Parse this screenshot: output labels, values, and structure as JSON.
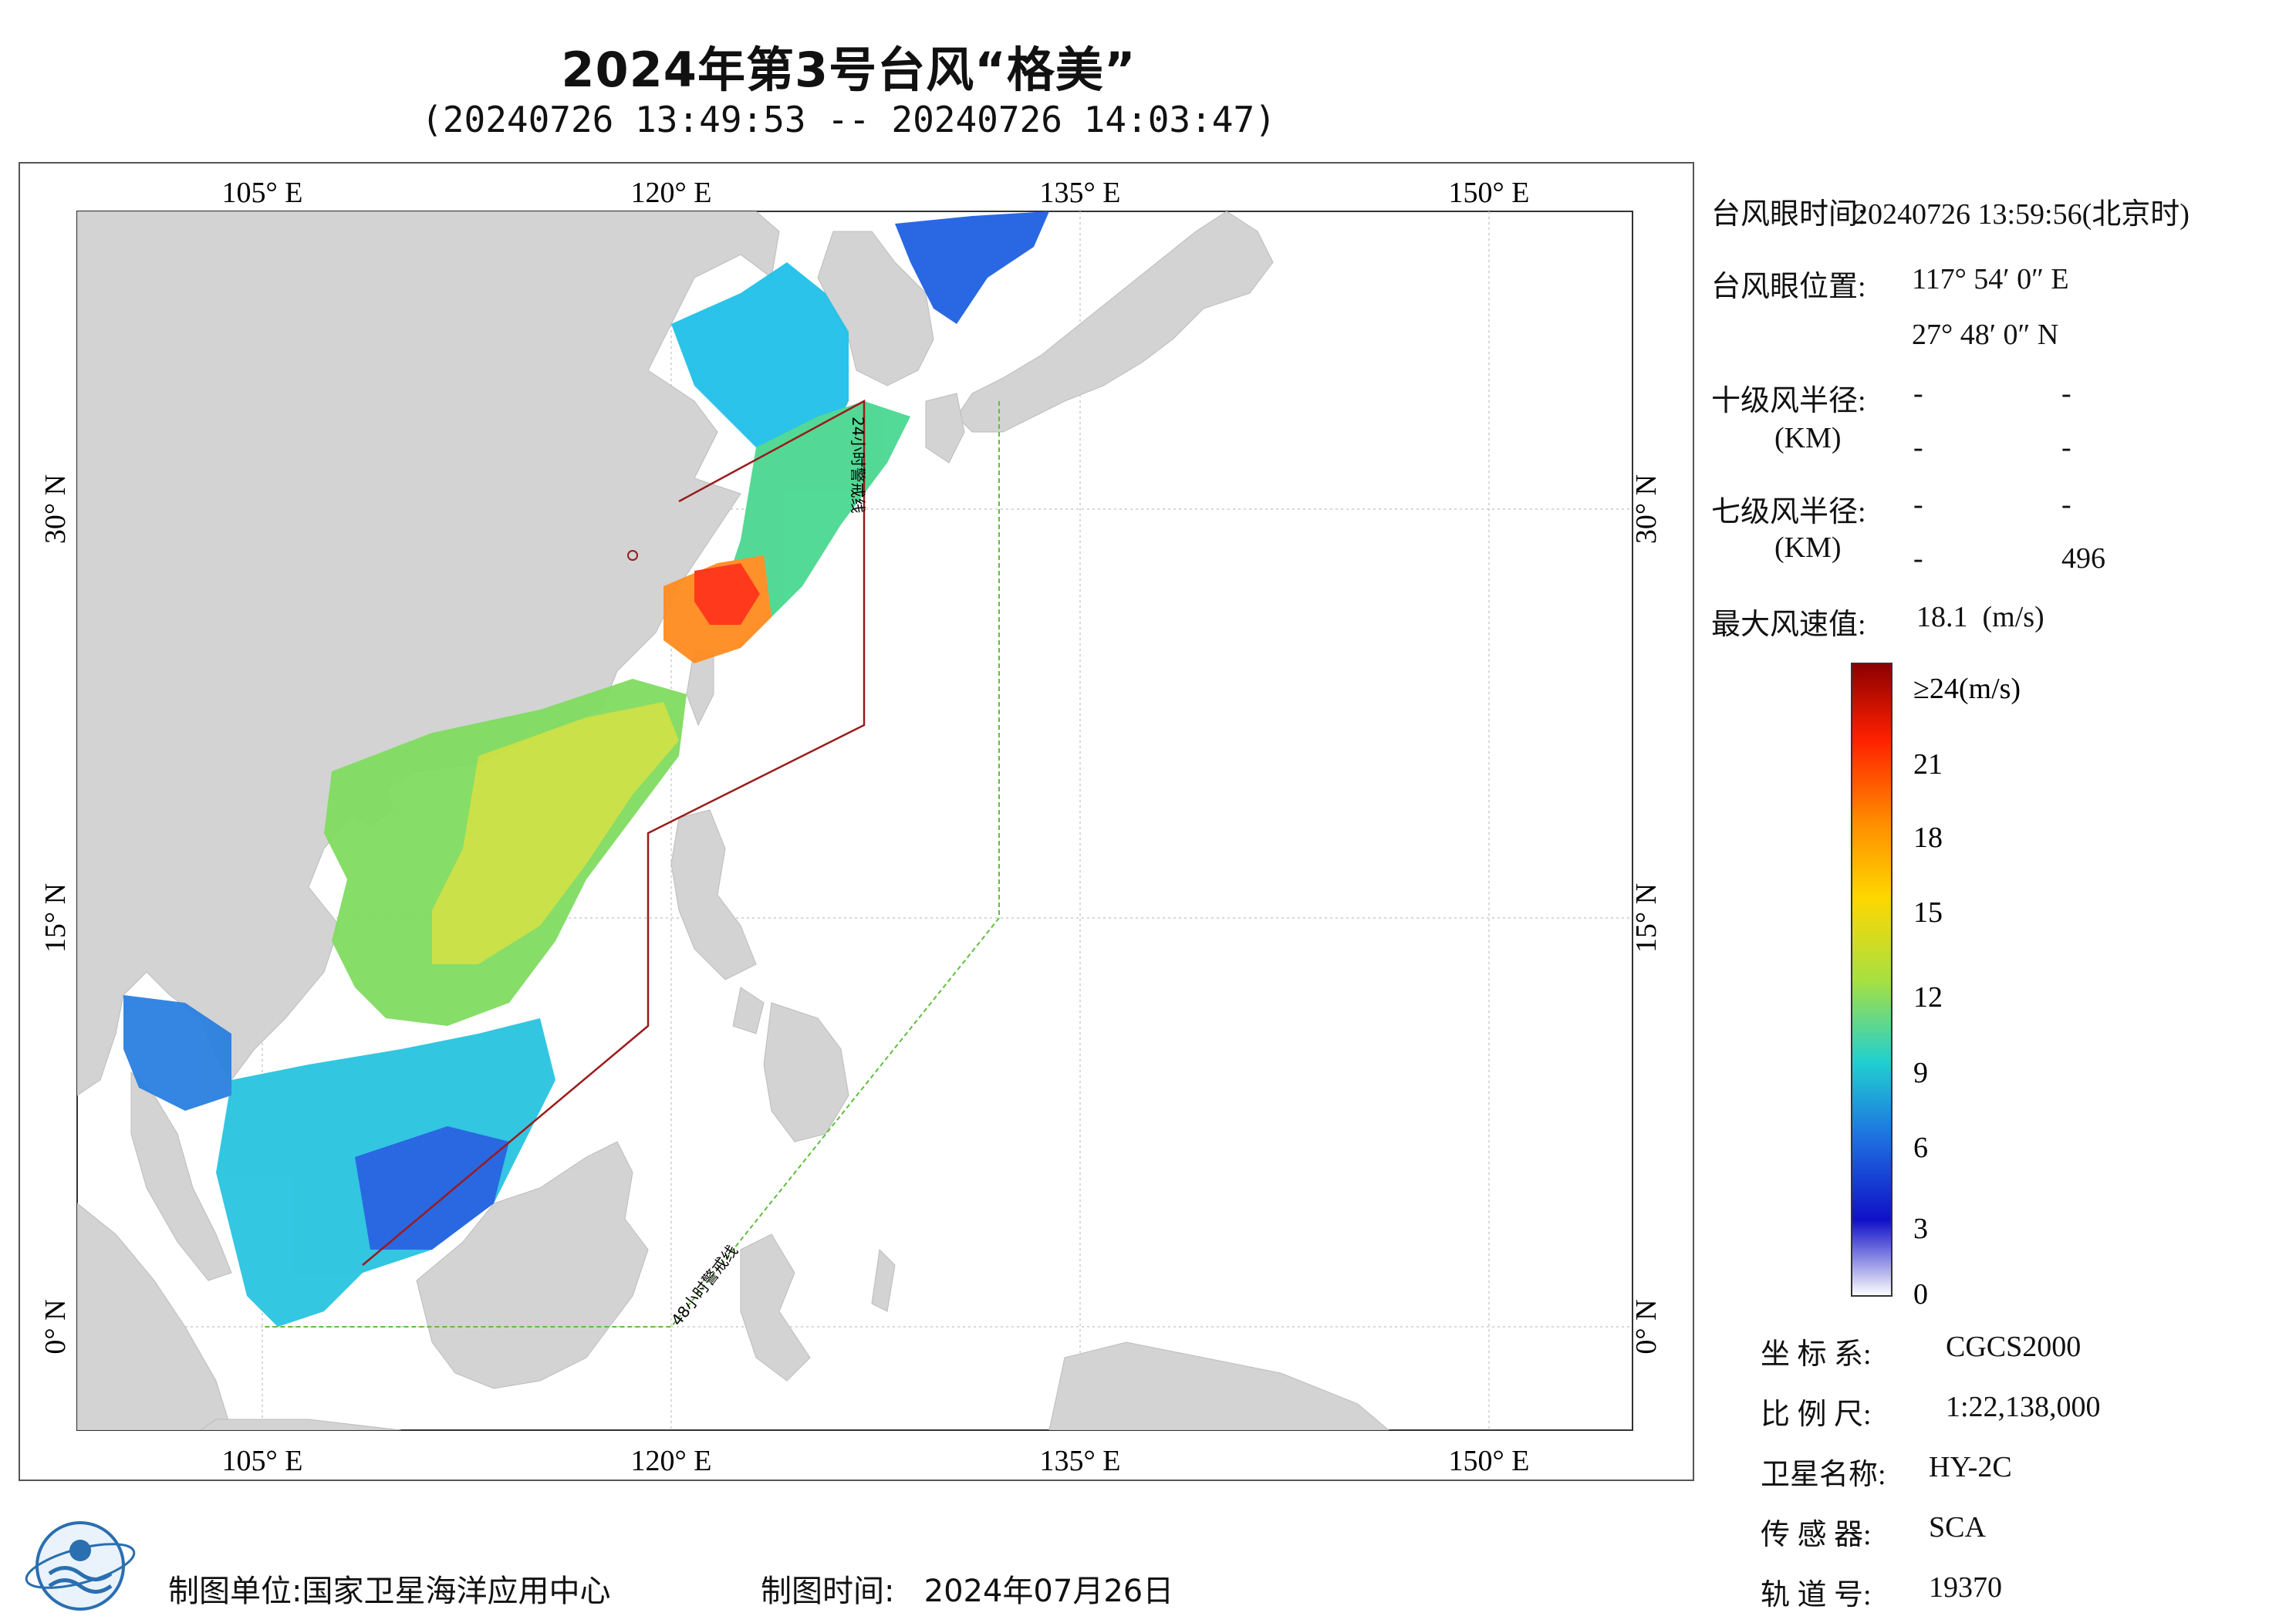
{
  "title": "2024年第3号台风“格美”",
  "subtitle": "(20240726 13:49:53 -- 20240726 14:03:47)",
  "map": {
    "lon_ticks": [
      "105° E",
      "120° E",
      "135° E",
      "150° E"
    ],
    "lat_ticks": [
      "30° N",
      "15° N",
      "0° N"
    ],
    "warning_line_24h": "24小时警戒线",
    "warning_line_48h": "48小时警戒线",
    "land_color": "#d3d3d3",
    "ocean_color": "#ffffff",
    "warning_24h_color": "#9b1b1b",
    "warning_48h_color": "#5fbf3f"
  },
  "info": {
    "eye_time_label": "台风眼时间:",
    "eye_time_value": "20240726 13:59:56(北京时)",
    "eye_pos_label": "台风眼位置:",
    "eye_lon": "117° 54′ 0″ E",
    "eye_lat": "27° 48′ 0″ N",
    "r10_label": "十级风半径:",
    "r10_unit": "(KM)",
    "r10_values": [
      "-",
      "-",
      "-",
      "-"
    ],
    "r7_label": "七级风半径:",
    "r7_unit": "(KM)",
    "r7_values": [
      "-",
      "-",
      "-",
      "496"
    ],
    "max_wind_label": "最大风速值:",
    "max_wind_value": "18.1  (m/s)"
  },
  "colorbar": {
    "labels": [
      "≥24(m/s)",
      "21",
      "18",
      "15",
      "12",
      "9",
      "6",
      "3",
      "0"
    ],
    "stops": [
      "#8b0000",
      "#ff2000",
      "#ff8c00",
      "#ffd700",
      "#a8e040",
      "#20d0d0",
      "#1e70e0",
      "#1010c8",
      "#ffffff"
    ]
  },
  "meta": {
    "crs_label": "坐 标 系:",
    "crs_value": "CGCS2000",
    "scale_label": "比 例 尺:",
    "scale_value": "1:22,138,000",
    "satellite_label": "卫星名称:",
    "satellite_value": "HY-2C",
    "sensor_label": "传 感 器:",
    "sensor_value": "SCA",
    "orbit_label": "轨 道 号:",
    "orbit_value": "19370"
  },
  "footer": {
    "unit": "制图单位:国家卫星海洋应用中心",
    "date": "制图时间:   2024年07月26日"
  }
}
